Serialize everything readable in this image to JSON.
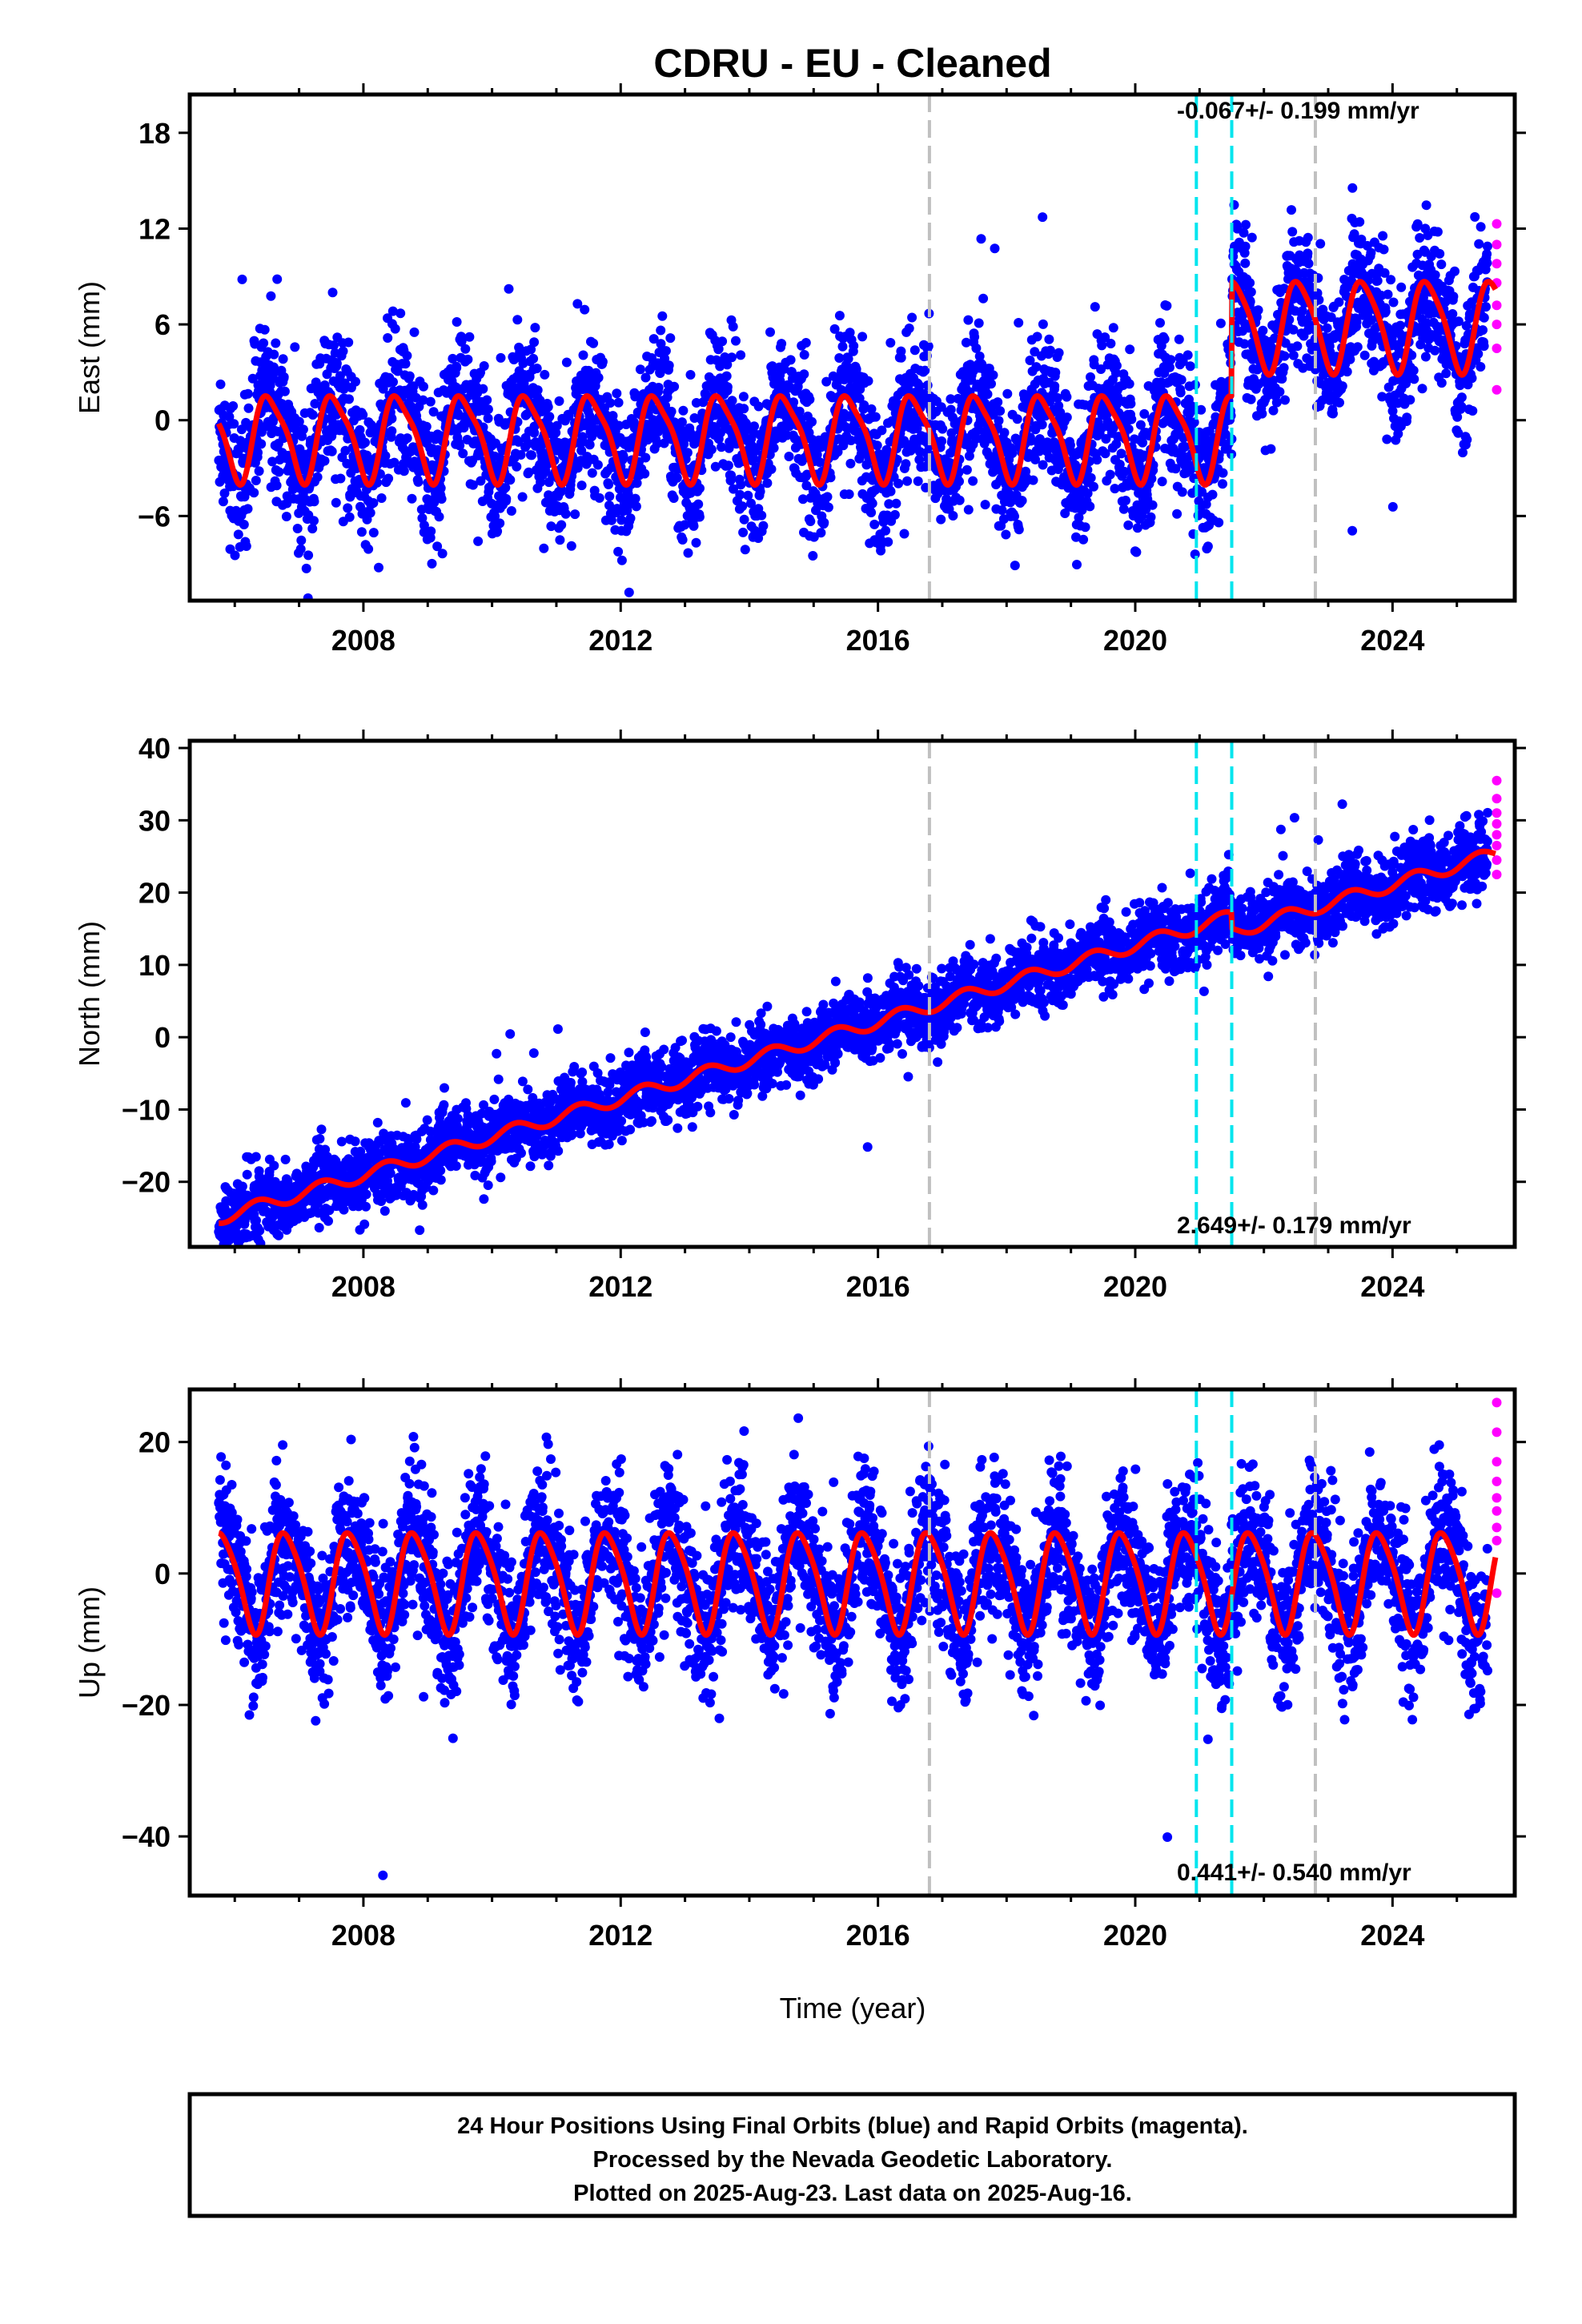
{
  "title": "CDRU  - EU - Cleaned",
  "xlabel": "Time (year)",
  "footer": {
    "line1": "24 Hour Positions Using Final Orbits (blue) and Rapid Orbits (magenta).",
    "line2": "Processed by the Nevada Geodetic Laboratory.",
    "line3": "Plotted on 2025-Aug-23. Last data on 2025-Aug-16."
  },
  "colors": {
    "final_points": "#0000ff",
    "rapid_points": "#ff00ff",
    "model_line": "#ff0000",
    "equipment_change": "#00e5ee",
    "earthquake": "#c0c0c0"
  },
  "chart_data": [
    {
      "type": "scatter",
      "component": "East",
      "ylabel": "East (mm)",
      "rate_label": "-0.067+/- 0.199 mm/yr",
      "xlim": [
        2005.3,
        2025.9
      ],
      "ylim": [
        -11.3,
        20.4
      ],
      "yticks": [
        -6,
        0,
        6,
        12,
        18
      ],
      "xticks": [
        2008,
        2012,
        2016,
        2020,
        2024
      ],
      "grid": false,
      "model": {
        "description": "trend + annual + semiannual with offsets",
        "periods": [
          {
            "start": 2005.75,
            "end": 2021.5,
            "level": -1.0,
            "annual_amp": 2.6,
            "semi_amp": 0.6,
            "phase": 0.3
          },
          {
            "start": 2021.5,
            "end": 2025.6,
            "level": 6.0,
            "annual_amp": 2.8,
            "semi_amp": 0.5,
            "phase": 0.3
          }
        ],
        "scatter_sd": 2.2
      },
      "offsets_equipment": [
        2020.95,
        2021.5
      ],
      "offsets_earthquake": [
        2016.8,
        2022.8
      ],
      "data_start": 2005.75,
      "data_end": 2025.62,
      "rapid_range": [
        2025.48,
        2025.62
      ],
      "rapid_values": [
        12.3,
        11.0,
        9.8,
        8.6,
        7.2,
        6.0,
        4.5,
        1.9
      ]
    },
    {
      "type": "scatter",
      "component": "North",
      "ylabel": "North (mm)",
      "rate_label": "2.649+/- 0.179 mm/yr",
      "xlim": [
        2005.3,
        2025.9
      ],
      "ylim": [
        -29,
        41
      ],
      "yticks": [
        -20,
        -10,
        0,
        10,
        20,
        30,
        40
      ],
      "xticks": [
        2008,
        2012,
        2016,
        2020,
        2024
      ],
      "grid": false,
      "model": {
        "description": "trend + annual with offsets",
        "periods": [
          {
            "start": 2005.75,
            "end": 2021.5,
            "v0": -25.0,
            "rate": 2.649,
            "annual_amp": 0.9,
            "phase": 0.1
          },
          {
            "start": 2021.5,
            "end": 2025.6,
            "v0": 14.5,
            "rate": 2.649,
            "annual_amp": 0.9,
            "phase": 0.1
          }
        ],
        "scatter_sd": 2.4
      },
      "offsets_equipment": [
        2020.95,
        2021.5
      ],
      "offsets_earthquake": [
        2016.8,
        2022.8
      ],
      "data_start": 2005.75,
      "data_end": 2025.62,
      "rapid_range": [
        2025.48,
        2025.62
      ],
      "rapid_values": [
        35.5,
        33.0,
        31.0,
        29.5,
        28.0,
        26.5,
        24.5,
        22.5
      ]
    },
    {
      "type": "scatter",
      "component": "Up",
      "ylabel": "Up (mm)",
      "rate_label": "0.441+/- 0.540 mm/yr",
      "xlim": [
        2005.3,
        2025.9
      ],
      "ylim": [
        -49,
        28
      ],
      "yticks": [
        -40,
        -20,
        0,
        20
      ],
      "xticks": [
        2008,
        2012,
        2016,
        2020,
        2024
      ],
      "grid": false,
      "model": {
        "description": "annual + semiannual",
        "periods": [
          {
            "start": 2005.75,
            "end": 2025.6,
            "level": -1.0,
            "annual_amp": 7.5,
            "semi_amp": 1.2,
            "phase": 0.55
          }
        ],
        "scatter_sd": 5.5
      },
      "offsets_equipment": [
        2020.95,
        2021.5
      ],
      "offsets_earthquake": [
        2016.8,
        2022.8
      ],
      "data_start": 2005.75,
      "data_end": 2025.62,
      "rapid_range": [
        2025.48,
        2025.62
      ],
      "rapid_values": [
        26.0,
        21.5,
        17.0,
        14.0,
        11.5,
        9.5,
        7.0,
        5.0,
        -3.0
      ]
    }
  ]
}
